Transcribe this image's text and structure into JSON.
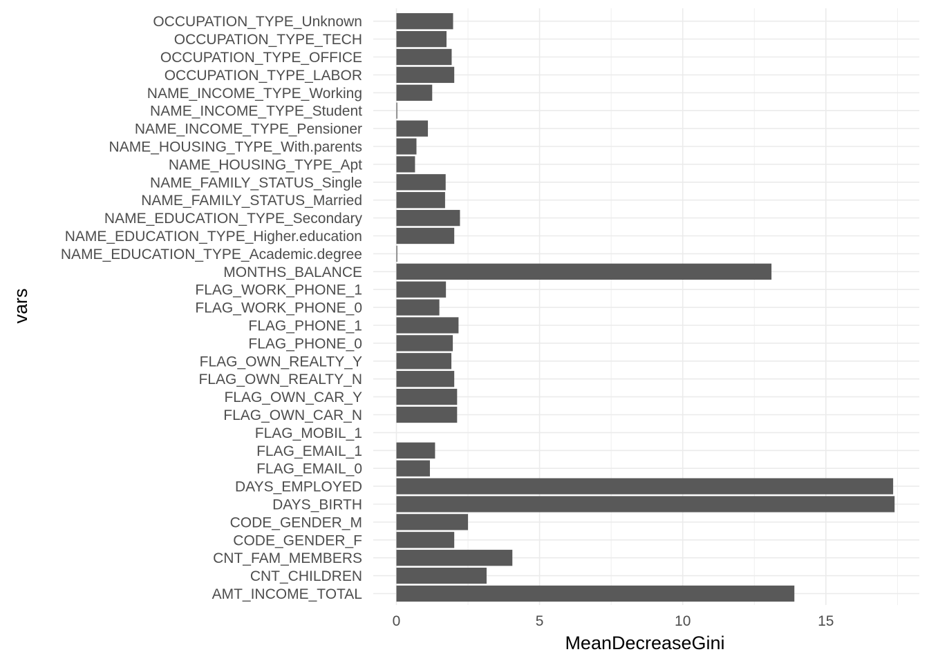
{
  "chart_data": {
    "type": "bar",
    "orientation": "horizontal",
    "title": "",
    "xlabel": "MeanDecreaseGini",
    "ylabel": "vars",
    "xlim": [
      0,
      18
    ],
    "x_ticks": [
      0,
      5,
      10,
      15
    ],
    "grid": true,
    "bar_color": "#595959",
    "grid_color": "#ebebeb",
    "categories": [
      "AMT_INCOME_TOTAL",
      "CNT_CHILDREN",
      "CNT_FAM_MEMBERS",
      "CODE_GENDER_F",
      "CODE_GENDER_M",
      "DAYS_BIRTH",
      "DAYS_EMPLOYED",
      "FLAG_EMAIL_0",
      "FLAG_EMAIL_1",
      "FLAG_MOBIL_1",
      "FLAG_OWN_CAR_N",
      "FLAG_OWN_CAR_Y",
      "FLAG_OWN_REALTY_N",
      "FLAG_OWN_REALTY_Y",
      "FLAG_PHONE_0",
      "FLAG_PHONE_1",
      "FLAG_WORK_PHONE_0",
      "FLAG_WORK_PHONE_1",
      "MONTHS_BALANCE",
      "NAME_EDUCATION_TYPE_Academic.degree",
      "NAME_EDUCATION_TYPE_Higher.education",
      "NAME_EDUCATION_TYPE_Secondary",
      "NAME_FAMILY_STATUS_Married",
      "NAME_FAMILY_STATUS_Single",
      "NAME_HOUSING_TYPE_Apt",
      "NAME_HOUSING_TYPE_With.parents",
      "NAME_INCOME_TYPE_Pensioner",
      "NAME_INCOME_TYPE_Student",
      "NAME_INCOME_TYPE_Working",
      "OCCUPATION_TYPE_LABOR",
      "OCCUPATION_TYPE_OFFICE",
      "OCCUPATION_TYPE_TECH",
      "OCCUPATION_TYPE_Unknown"
    ],
    "values": [
      13.9,
      3.15,
      4.05,
      2.02,
      2.5,
      17.4,
      17.35,
      1.17,
      1.35,
      0.0,
      2.12,
      2.12,
      2.02,
      1.92,
      1.97,
      2.17,
      1.5,
      1.73,
      13.1,
      0.03,
      2.02,
      2.22,
      1.7,
      1.72,
      0.65,
      0.7,
      1.1,
      0.03,
      1.25,
      2.02,
      1.93,
      1.75,
      1.98
    ]
  }
}
